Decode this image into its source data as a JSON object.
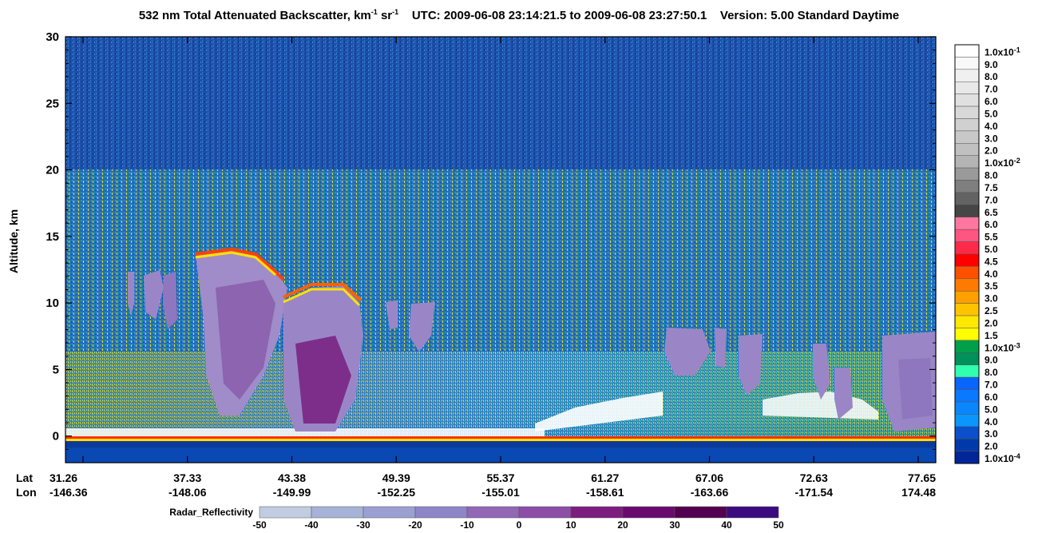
{
  "title": {
    "product": "532 nm Total Attenuated Backscatter, km",
    "sup1": "-1",
    "unit_mid": " sr",
    "sup2": "-1",
    "utc": "UTC:  2009-06-08 23:14:21.5  to  2009-06-08 23:27:50.1",
    "version": "Version: 5.00  Standard  Daytime"
  },
  "chart_data": {
    "type": "heatmap",
    "ylabel": "Altitude, km",
    "ylim": [
      -2,
      30
    ],
    "yticks": [
      0,
      5,
      10,
      15,
      20,
      25,
      30
    ],
    "x_rows": [
      {
        "label": "Lat",
        "values": [
          "31.26",
          "37.33",
          "43.38",
          "49.39",
          "55.37",
          "61.27",
          "67.06",
          "72.63",
          "77.65"
        ]
      },
      {
        "label": "Lon",
        "values": [
          "-146.36",
          "-148.06",
          "-149.99",
          "-152.25",
          "-155.01",
          "-158.61",
          "-163.66",
          "-171.54",
          "174.48"
        ]
      }
    ],
    "colorbar": {
      "labels": [
        "1.0x10-1",
        "9.0",
        "8.0",
        "7.0",
        "6.0",
        "5.0",
        "4.0",
        "3.0",
        "2.0",
        "1.0x10-2",
        "8.0",
        "7.5",
        "7.0",
        "6.5",
        "6.0",
        "5.5",
        "5.0",
        "4.5",
        "4.0",
        "3.5",
        "3.0",
        "2.5",
        "2.0",
        "1.5",
        "1.0x10-3",
        "9.0",
        "8.0",
        "7.0",
        "6.0",
        "5.0",
        "4.0",
        "3.0",
        "2.0",
        "1.0x10-4"
      ],
      "colors": [
        "#ffffff",
        "#f8f8f8",
        "#f0f0f0",
        "#e8e8e8",
        "#e0e0e0",
        "#d8d8d8",
        "#d0d0d0",
        "#c8c8c8",
        "#c0c0c0",
        "#b4b4b4",
        "#9a9a9a",
        "#7f7f7f",
        "#636363",
        "#464646",
        "#ff77a0",
        "#ff5580",
        "#ff2a4a",
        "#ff0000",
        "#ff5000",
        "#ff7a00",
        "#ffa000",
        "#ffc400",
        "#ffe800",
        "#ffff00",
        "#00a04a",
        "#00905a",
        "#30ffb0",
        "#0a64ff",
        "#0a78ff",
        "#0a86ff",
        "#0a96ff",
        "#0a50cc",
        "#003aaa",
        "#00259a"
      ]
    },
    "radar": {
      "label": "Radar_Reflectivity",
      "ticks": [
        "-50",
        "-40",
        "-30",
        "-20",
        "-10",
        "0",
        "10",
        "20",
        "30",
        "40",
        "50"
      ],
      "colors": [
        "#c2cce0",
        "#a6b3d6",
        "#9aa0d2",
        "#8f86c8",
        "#9267b6",
        "#8c4ea6",
        "#7d1d80",
        "#6a0a6e",
        "#52004f",
        "#3c0a80"
      ]
    },
    "features": {
      "cirrus_top_km": 20,
      "surface_km": 0,
      "tall_cloud_tops_km": [
        12.6,
        13.5,
        12.5,
        10.8
      ],
      "low_cloud_tops_km": [
        1.5,
        3.0,
        7.5
      ]
    }
  }
}
